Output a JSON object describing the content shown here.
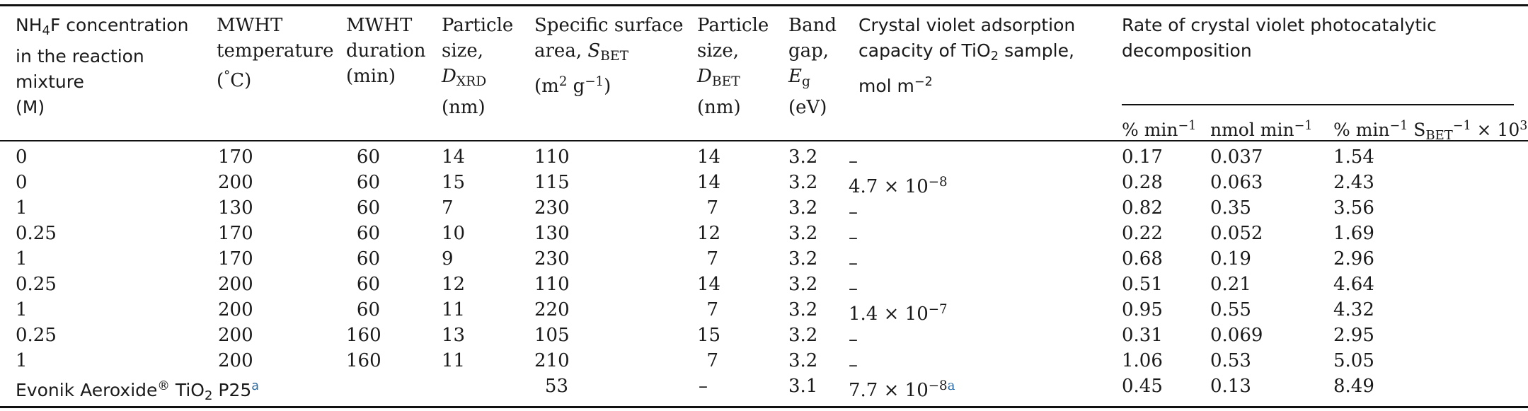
{
  "headers": {
    "nh4f": [
      "NH",
      "4",
      "F concentration",
      "in the reaction",
      "mixture",
      "(M)"
    ],
    "temperature": [
      "MWHT",
      "temperature",
      "(",
      "°",
      "C)"
    ],
    "duration": [
      "MWHT",
      "duration",
      "(min)"
    ],
    "dxrd": [
      "Particle",
      "size,",
      "D",
      "XRD",
      "(nm)"
    ],
    "sbet": [
      "Specific surface",
      "area, ",
      "S",
      "BET",
      "(m",
      "2",
      " g",
      "−1",
      ")"
    ],
    "dbet": [
      "Particle",
      "size,",
      "D",
      "BET",
      "(nm)"
    ],
    "bandgap": [
      "Band",
      "gap,",
      "E",
      "g",
      "(eV)"
    ],
    "adsorption": [
      "Crystal violet adsorption",
      "capacity of TiO",
      "2",
      " sample,",
      "mol m",
      "−2"
    ],
    "rate": [
      "Rate of crystal violet photocatalytic",
      "decomposition"
    ],
    "rate_sub": {
      "pct": [
        "% min",
        "−1"
      ],
      "nmol": [
        "nmol min",
        "−1"
      ],
      "norm": [
        "% min",
        "−1",
        " S",
        "BET",
        "−1",
        " × 10",
        "3"
      ]
    }
  },
  "rows": [
    {
      "nh4f": "0",
      "temp": "170",
      "dur": "60",
      "dxrd": "14",
      "sbet": "110",
      "dbet": "14",
      "eg": "3.2",
      "ads": "–",
      "ads_exp": "",
      "pct": "0.17",
      "nmol": "0.037",
      "norm": "1.54"
    },
    {
      "nh4f": "0",
      "temp": "200",
      "dur": "60",
      "dxrd": "15",
      "sbet": "115",
      "dbet": "14",
      "eg": "3.2",
      "ads": "4.7 × 10",
      "ads_exp": "−8",
      "pct": "0.28",
      "nmol": "0.063",
      "norm": "2.43"
    },
    {
      "nh4f": "1",
      "temp": "130",
      "dur": "60",
      "dxrd": "7",
      "sbet": "230",
      "dbet": "7",
      "eg": "3.2",
      "ads": "–",
      "ads_exp": "",
      "pct": "0.82",
      "nmol": "0.35",
      "norm": "3.56"
    },
    {
      "nh4f": "0.25",
      "temp": "170",
      "dur": "60",
      "dxrd": "10",
      "sbet": "130",
      "dbet": "12",
      "eg": "3.2",
      "ads": "–",
      "ads_exp": "",
      "pct": "0.22",
      "nmol": "0.052",
      "norm": "1.69"
    },
    {
      "nh4f": "1",
      "temp": "170",
      "dur": "60",
      "dxrd": "9",
      "sbet": "230",
      "dbet": "7",
      "eg": "3.2",
      "ads": "–",
      "ads_exp": "",
      "pct": "0.68",
      "nmol": "0.19",
      "norm": "2.96"
    },
    {
      "nh4f": "0.25",
      "temp": "200",
      "dur": "60",
      "dxrd": "12",
      "sbet": "110",
      "dbet": "14",
      "eg": "3.2",
      "ads": "–",
      "ads_exp": "",
      "pct": "0.51",
      "nmol": "0.21",
      "norm": "4.64"
    },
    {
      "nh4f": "1",
      "temp": "200",
      "dur": "60",
      "dxrd": "11",
      "sbet": "220",
      "dbet": "7",
      "eg": "3.2",
      "ads": "1.4 × 10",
      "ads_exp": "−7",
      "pct": "0.95",
      "nmol": "0.55",
      "norm": "4.32"
    },
    {
      "nh4f": "0.25",
      "temp": "200",
      "dur": "160",
      "dxrd": "13",
      "sbet": "105",
      "dbet": "15",
      "eg": "3.2",
      "ads": "–",
      "ads_exp": "",
      "pct": "0.31",
      "nmol": "0.069",
      "norm": "2.95"
    },
    {
      "nh4f": "1",
      "temp": "200",
      "dur": "160",
      "dxrd": "11",
      "sbet": "210",
      "dbet": "7",
      "eg": "3.2",
      "ads": "–",
      "ads_exp": "",
      "pct": "1.06",
      "nmol": "0.53",
      "norm": "5.05"
    }
  ],
  "reference_row": {
    "label": "Evonik Aeroxide",
    "reg": "®",
    "tio2": " TiO",
    "tio2_sub": "2",
    "p25": " P25",
    "footnote": "a",
    "sbet": "53",
    "dbet": "–",
    "eg": "3.1",
    "ads": "7.7 × 10",
    "ads_exp": "−8",
    "ads_footnote": "a",
    "pct": "0.45",
    "nmol": "0.13",
    "norm": "8.49"
  },
  "colors": {
    "rule": "#111111",
    "link": "#2a6aa0"
  }
}
